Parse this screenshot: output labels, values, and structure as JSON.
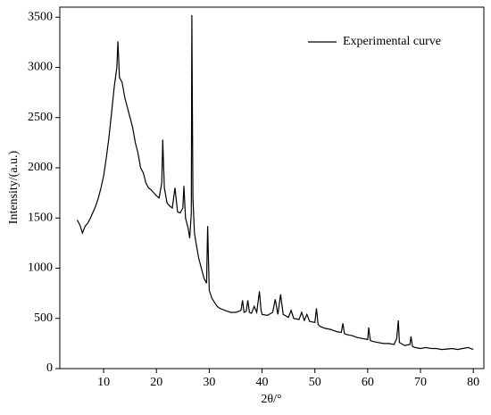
{
  "chart_data": {
    "type": "line",
    "xlabel": "2θ/°",
    "ylabel": "Intensity/(a.u.)",
    "xlim": [
      1.7,
      82
    ],
    "ylim": [
      0,
      3600
    ],
    "xticks": [
      10,
      20,
      30,
      40,
      50,
      60,
      70,
      80
    ],
    "yticks": [
      0,
      500,
      1000,
      1500,
      2000,
      2500,
      3000,
      3500
    ],
    "legend": "upper right",
    "series": [
      {
        "name": "Experimental curve",
        "color": "#000000",
        "x": [
          5,
          5.5,
          6,
          6.5,
          7,
          7.5,
          8,
          8.5,
          9,
          9.5,
          10,
          10.5,
          11,
          11.5,
          12,
          12.5,
          12.7,
          13,
          13.5,
          14,
          14.5,
          15,
          15.5,
          16,
          16.5,
          17,
          17.5,
          18,
          18.5,
          19,
          19.5,
          20,
          20.5,
          21,
          21.2,
          21.5,
          22,
          22.5,
          23,
          23.5,
          24,
          24.5,
          25,
          25.2,
          25.5,
          26,
          26.3,
          26.6,
          26.7,
          26.9,
          27.2,
          27.5,
          28,
          28.5,
          29,
          29.5,
          29.7,
          30,
          30.5,
          31,
          31.5,
          32,
          33,
          34,
          35,
          36,
          36.3,
          36.6,
          37,
          37.3,
          37.6,
          38,
          38.5,
          39,
          39.5,
          39.8,
          40,
          41,
          42,
          42.5,
          43,
          43.5,
          44,
          45,
          45.5,
          46,
          47,
          47.5,
          48,
          48.5,
          49,
          50,
          50.3,
          50.6,
          51,
          52,
          53,
          54,
          55,
          55.3,
          55.6,
          56,
          57,
          58,
          59,
          60,
          60.2,
          60.5,
          61,
          62,
          63,
          64,
          65,
          65.5,
          65.8,
          66,
          67,
          68,
          68.2,
          68.5,
          69,
          70,
          71,
          72,
          73,
          74,
          75,
          76,
          77,
          78,
          79,
          80
        ],
        "values": [
          1480,
          1430,
          1350,
          1420,
          1450,
          1500,
          1560,
          1620,
          1700,
          1800,
          1920,
          2100,
          2300,
          2550,
          2800,
          3000,
          3260,
          2900,
          2850,
          2700,
          2600,
          2500,
          2400,
          2250,
          2150,
          2000,
          1950,
          1850,
          1800,
          1780,
          1750,
          1720,
          1700,
          1850,
          2280,
          1800,
          1650,
          1620,
          1600,
          1800,
          1560,
          1550,
          1600,
          1820,
          1500,
          1400,
          1300,
          1550,
          3520,
          1700,
          1350,
          1250,
          1100,
          1000,
          900,
          850,
          1420,
          780,
          700,
          660,
          620,
          600,
          580,
          560,
          560,
          580,
          680,
          560,
          570,
          680,
          560,
          550,
          620,
          560,
          770,
          580,
          540,
          530,
          560,
          690,
          540,
          740,
          540,
          510,
          580,
          500,
          490,
          560,
          480,
          540,
          470,
          460,
          600,
          440,
          420,
          400,
          390,
          370,
          360,
          450,
          350,
          340,
          330,
          310,
          300,
          290,
          410,
          280,
          270,
          260,
          250,
          250,
          240,
          300,
          480,
          260,
          230,
          240,
          320,
          220,
          210,
          200,
          210,
          200,
          200,
          190,
          195,
          200,
          190,
          200,
          210,
          190
        ]
      }
    ]
  }
}
